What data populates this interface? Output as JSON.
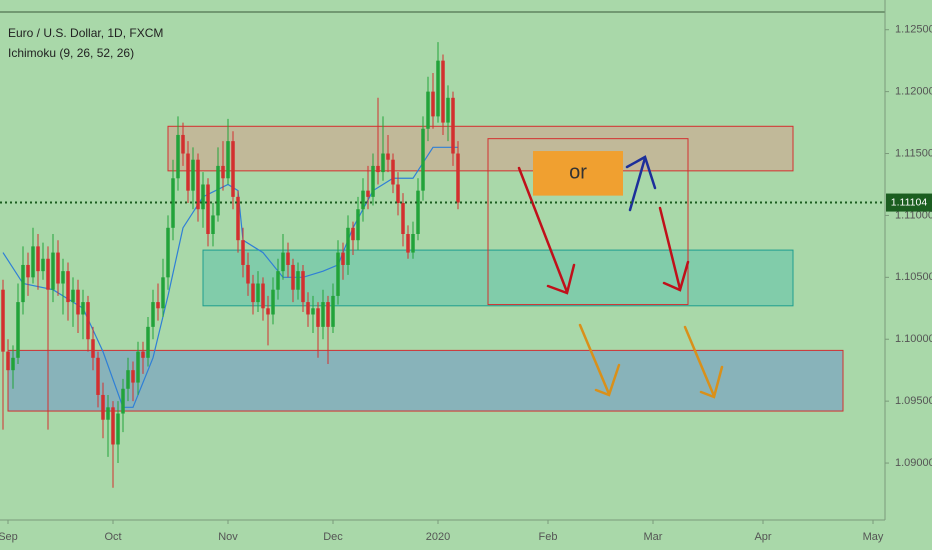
{
  "chart_data": {
    "type": "candlestick",
    "title": "Euro / U.S. Dollar, 1D, FXCM",
    "subtitle": "Ichimoku (9, 26, 52, 26)",
    "up_color": "#22a33a",
    "down_color": "#d32f2f",
    "ylim": [
      1.0854,
      1.1274
    ],
    "xlim": [
      -0.6,
      176.4
    ],
    "yticks": [
      {
        "value": 1.125,
        "label": "1.12500"
      },
      {
        "value": 1.12,
        "label": "1.12000"
      },
      {
        "value": 1.115,
        "label": "1.11500"
      },
      {
        "value": 1.11,
        "label": "1.11000"
      },
      {
        "value": 1.105,
        "label": "1.10500"
      },
      {
        "value": 1.1,
        "label": "1.10000"
      },
      {
        "value": 1.095,
        "label": "1.09500"
      },
      {
        "value": 1.09,
        "label": "1.09000"
      }
    ],
    "xticks": [
      {
        "value": 1,
        "label": "Sep"
      },
      {
        "value": 22,
        "label": "Oct"
      },
      {
        "value": 45,
        "label": "Nov"
      },
      {
        "value": 66,
        "label": "Dec"
      },
      {
        "value": 87,
        "label": "2020"
      },
      {
        "value": 109,
        "label": "Feb"
      },
      {
        "value": 130,
        "label": "Mar"
      },
      {
        "value": 152,
        "label": "Apr"
      },
      {
        "value": 174,
        "label": "May"
      }
    ],
    "last_price": 1.11104,
    "last_price_color": "#1b5e20",
    "ohlc": [
      [
        1.104,
        1.1048,
        1.0927,
        1.099
      ],
      [
        1.099,
        1.1,
        1.0965,
        1.0975
      ],
      [
        1.0975,
        1.0995,
        1.096,
        1.0985
      ],
      [
        1.0985,
        1.1045,
        1.098,
        1.103
      ],
      [
        1.103,
        1.1075,
        1.102,
        1.106
      ],
      [
        1.106,
        1.107,
        1.1035,
        1.105
      ],
      [
        1.105,
        1.109,
        1.1045,
        1.1075
      ],
      [
        1.1075,
        1.1085,
        1.104,
        1.1055
      ],
      [
        1.1055,
        1.1078,
        1.1048,
        1.1065
      ],
      [
        1.1065,
        1.1075,
        1.0927,
        1.104
      ],
      [
        1.104,
        1.1085,
        1.103,
        1.107
      ],
      [
        1.107,
        1.108,
        1.1035,
        1.1045
      ],
      [
        1.1045,
        1.1065,
        1.102,
        1.1055
      ],
      [
        1.1055,
        1.1062,
        1.1015,
        1.103
      ],
      [
        1.103,
        1.105,
        1.101,
        1.104
      ],
      [
        1.104,
        1.1048,
        1.1005,
        1.102
      ],
      [
        1.102,
        1.104,
        1.1,
        1.103
      ],
      [
        1.103,
        1.1035,
        1.099,
        1.1
      ],
      [
        1.1,
        1.101,
        1.0975,
        1.0985
      ],
      [
        1.0985,
        1.099,
        1.0945,
        1.0955
      ],
      [
        1.0955,
        1.0965,
        1.092,
        1.0935
      ],
      [
        1.0935,
        1.0955,
        1.0905,
        1.0945
      ],
      [
        1.0945,
        1.095,
        1.088,
        1.0915
      ],
      [
        1.0915,
        1.095,
        1.09,
        1.094
      ],
      [
        1.094,
        1.0968,
        1.0925,
        1.096
      ],
      [
        1.096,
        1.0985,
        1.095,
        1.0975
      ],
      [
        1.0975,
        1.0982,
        1.095,
        1.0965
      ],
      [
        1.0965,
        1.0998,
        1.0955,
        1.099
      ],
      [
        1.099,
        1.0998,
        1.0972,
        1.0985
      ],
      [
        1.0985,
        1.1018,
        1.0978,
        1.101
      ],
      [
        1.101,
        1.104,
        1.1,
        1.103
      ],
      [
        1.103,
        1.1045,
        1.1015,
        1.1025
      ],
      [
        1.1025,
        1.1065,
        1.1018,
        1.105
      ],
      [
        1.105,
        1.11,
        1.104,
        1.109
      ],
      [
        1.109,
        1.1145,
        1.108,
        1.113
      ],
      [
        1.113,
        1.118,
        1.112,
        1.1165
      ],
      [
        1.1165,
        1.1175,
        1.114,
        1.115
      ],
      [
        1.115,
        1.116,
        1.111,
        1.112
      ],
      [
        1.112,
        1.1155,
        1.1105,
        1.1145
      ],
      [
        1.1145,
        1.115,
        1.1095,
        1.1105
      ],
      [
        1.1105,
        1.1135,
        1.109,
        1.1125
      ],
      [
        1.1125,
        1.113,
        1.1075,
        1.1085
      ],
      [
        1.1085,
        1.111,
        1.1075,
        1.11
      ],
      [
        1.11,
        1.1155,
        1.1095,
        1.114
      ],
      [
        1.114,
        1.116,
        1.112,
        1.113
      ],
      [
        1.113,
        1.1178,
        1.1125,
        1.116
      ],
      [
        1.116,
        1.1168,
        1.1105,
        1.1115
      ],
      [
        1.1115,
        1.112,
        1.107,
        1.108
      ],
      [
        1.108,
        1.109,
        1.105,
        1.106
      ],
      [
        1.106,
        1.107,
        1.1035,
        1.1045
      ],
      [
        1.1045,
        1.1052,
        1.102,
        1.103
      ],
      [
        1.103,
        1.1055,
        1.1022,
        1.1045
      ],
      [
        1.1045,
        1.105,
        1.1015,
        1.1025
      ],
      [
        1.1025,
        1.1035,
        1.0995,
        1.102
      ],
      [
        1.102,
        1.105,
        1.1012,
        1.104
      ],
      [
        1.104,
        1.1065,
        1.1032,
        1.1055
      ],
      [
        1.1055,
        1.1085,
        1.1048,
        1.107
      ],
      [
        1.107,
        1.1078,
        1.105,
        1.106
      ],
      [
        1.106,
        1.1065,
        1.103,
        1.104
      ],
      [
        1.104,
        1.1062,
        1.1032,
        1.1055
      ],
      [
        1.1055,
        1.106,
        1.1022,
        1.103
      ],
      [
        1.103,
        1.1038,
        1.101,
        1.102
      ],
      [
        1.102,
        1.1035,
        1.1005,
        1.1025
      ],
      [
        1.1025,
        1.103,
        1.0985,
        1.101
      ],
      [
        1.101,
        1.104,
        1.1,
        1.103
      ],
      [
        1.103,
        1.1035,
        1.098,
        1.101
      ],
      [
        1.101,
        1.1045,
        1.1005,
        1.1035
      ],
      [
        1.1035,
        1.108,
        1.1028,
        1.107
      ],
      [
        1.107,
        1.1078,
        1.1048,
        1.106
      ],
      [
        1.106,
        1.11,
        1.1052,
        1.109
      ],
      [
        1.109,
        1.1095,
        1.1068,
        1.108
      ],
      [
        1.108,
        1.1115,
        1.1072,
        1.1105
      ],
      [
        1.1105,
        1.113,
        1.1095,
        1.112
      ],
      [
        1.112,
        1.114,
        1.1105,
        1.1115
      ],
      [
        1.1115,
        1.115,
        1.1108,
        1.114
      ],
      [
        1.114,
        1.1195,
        1.1125,
        1.1135
      ],
      [
        1.1135,
        1.118,
        1.1128,
        1.115
      ],
      [
        1.115,
        1.1165,
        1.1135,
        1.1145
      ],
      [
        1.1145,
        1.115,
        1.1118,
        1.1125
      ],
      [
        1.1125,
        1.1135,
        1.11,
        1.111
      ],
      [
        1.111,
        1.1118,
        1.1075,
        1.1085
      ],
      [
        1.1085,
        1.1092,
        1.1065,
        1.107
      ],
      [
        1.107,
        1.1095,
        1.1065,
        1.1085
      ],
      [
        1.1085,
        1.113,
        1.108,
        1.112
      ],
      [
        1.112,
        1.118,
        1.1112,
        1.117
      ],
      [
        1.117,
        1.1212,
        1.116,
        1.12
      ],
      [
        1.12,
        1.1215,
        1.117,
        1.118
      ],
      [
        1.118,
        1.124,
        1.1175,
        1.1225
      ],
      [
        1.1225,
        1.123,
        1.1165,
        1.1175
      ],
      [
        1.1175,
        1.1205,
        1.116,
        1.1195
      ],
      [
        1.1195,
        1.12,
        1.114,
        1.115
      ],
      [
        1.115,
        1.116,
        1.1105,
        1.11104
      ]
    ],
    "ichimoku": {
      "color": "#2f7fd6",
      "x": [
        0,
        4,
        10,
        16,
        20,
        24,
        26,
        30,
        33,
        36,
        40,
        45,
        47,
        48,
        52,
        56,
        60,
        64,
        67,
        70,
        74,
        78,
        82,
        86,
        91
      ],
      "values": [
        1.107,
        1.1045,
        1.104,
        1.1025,
        1.099,
        1.0945,
        1.0945,
        1.0985,
        1.1035,
        1.109,
        1.1115,
        1.1125,
        1.112,
        1.108,
        1.107,
        1.105,
        1.105,
        1.1055,
        1.106,
        1.109,
        1.112,
        1.113,
        1.113,
        1.1155,
        1.1155
      ]
    },
    "zones": [
      {
        "x": [
          33,
          158
        ],
        "y": [
          1.1136,
          1.1172
        ],
        "fill": "rgba(214,160,140,0.55)",
        "stroke": "#d32f2f"
      },
      {
        "x": [
          40,
          158
        ],
        "y": [
          1.1027,
          1.1072
        ],
        "fill": "rgba(80,190,170,0.45)",
        "stroke": "#1e9e8e"
      },
      {
        "x": [
          1,
          168
        ],
        "y": [
          1.0942,
          1.0991
        ],
        "fill": "rgba(110,150,200,0.55)",
        "stroke": "#d32f2f"
      },
      {
        "x": [
          97,
          137
        ],
        "y": [
          1.1028,
          1.1162
        ],
        "fill": "none",
        "stroke": "#d32f2f"
      },
      {
        "x": [
          106,
          124
        ],
        "y": [
          1.1116,
          1.1152
        ],
        "fill": "#f0a030",
        "stroke": "none",
        "text": "or"
      }
    ]
  }
}
